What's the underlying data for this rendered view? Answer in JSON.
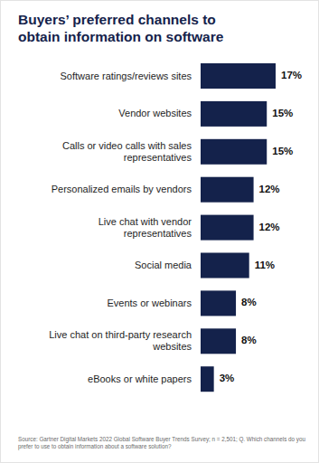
{
  "chart_data": {
    "type": "bar",
    "orientation": "horizontal",
    "title": "Buyers’ preferred channels to obtain information on software",
    "categories": [
      "Software ratings/reviews sites",
      "Vendor websites",
      "Calls or video calls with sales representatives",
      "Personalized emails by vendors",
      "Live chat with vendor representatives",
      "Social media",
      "Events or webinars",
      "Live chat on third-party research websites",
      "eBooks or white papers"
    ],
    "values": [
      17,
      15,
      15,
      12,
      12,
      11,
      8,
      8,
      3
    ],
    "value_labels": [
      "17%",
      "15%",
      "15%",
      "12%",
      "12%",
      "11%",
      "8%",
      "8%",
      "3%"
    ],
    "xlim": [
      0,
      17
    ],
    "color": "#14224b",
    "data_labels": true,
    "tick_labels": false,
    "grid": false,
    "source": "Source: Gartner Digital Markets 2022 Global Software Buyer Trends Survey; n = 2,501; Q. Which channels do you prefer to use to obtain information about a software solution?"
  }
}
